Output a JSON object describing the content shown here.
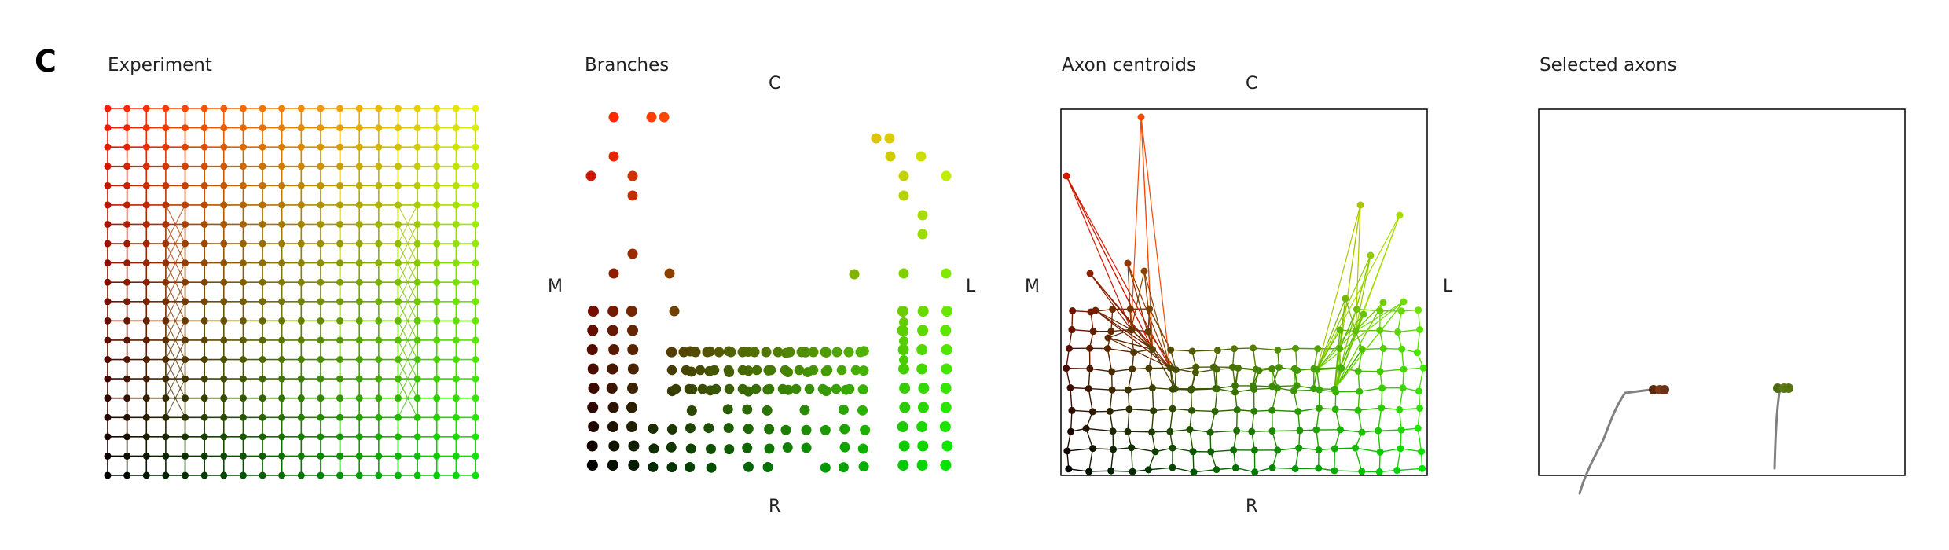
{
  "figure": {
    "panel_label": "C",
    "panels": [
      {
        "title": "Experiment"
      },
      {
        "title": "Branches",
        "axis_labels": {
          "top": "C",
          "bottom": "R",
          "left": "M",
          "right": "L"
        }
      },
      {
        "title": "Axon centroids",
        "axis_labels": {
          "top": "C",
          "bottom": "R",
          "left": "M",
          "right": "L"
        }
      },
      {
        "title": "Selected axons"
      }
    ]
  },
  "colors": {
    "top_left": "#ff1a00",
    "top_right": "#e6f000",
    "bottom_left": "#000000",
    "bottom_right": "#00e600",
    "frame": "#000000",
    "axon_trace": "#808080"
  }
}
